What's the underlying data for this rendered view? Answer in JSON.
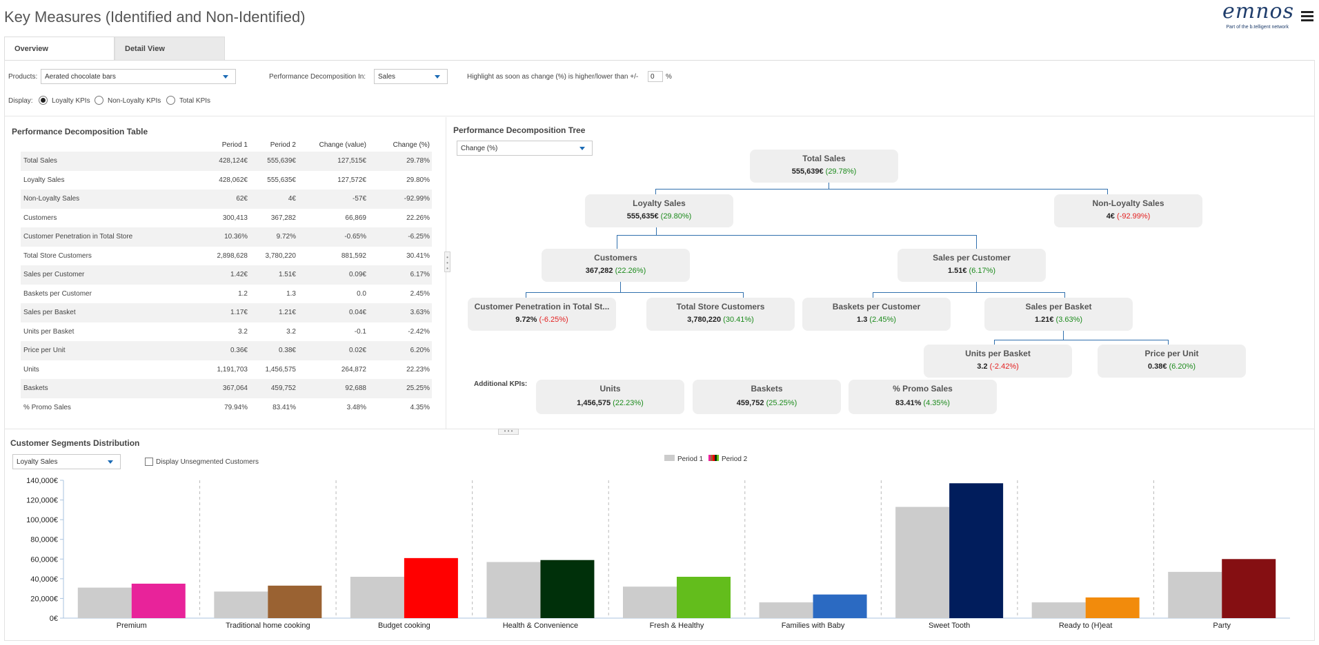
{
  "header": {
    "title": "Key Measures (Identified and Non-Identified)",
    "logo_text": "emnos",
    "logo_subtext": "Part of the b.telligent network"
  },
  "tabs": [
    {
      "label": "Overview",
      "active": true
    },
    {
      "label": "Detail View",
      "active": false
    }
  ],
  "controls": {
    "products_label": "Products:",
    "products_value": "Aerated chocolate bars",
    "decomp_label": "Performance Decomposition In:",
    "decomp_value": "Sales",
    "highlight_label": "Highlight as soon as change (%) is higher/lower than +/-",
    "highlight_value": "0",
    "highlight_unit": "%",
    "display_label": "Display:",
    "display_options": [
      {
        "label": "Loyalty KPIs",
        "selected": true
      },
      {
        "label": "Non-Loyalty KPIs",
        "selected": false
      },
      {
        "label": "Total KPIs",
        "selected": false
      }
    ]
  },
  "table": {
    "title": "Performance Decomposition Table",
    "columns": [
      "",
      "Period 1",
      "Period 2",
      "Change (value)",
      "Change (%)"
    ],
    "rows": [
      [
        "Total Sales",
        "428,124€",
        "555,639€",
        "127,515€",
        "29.78%"
      ],
      [
        "Loyalty Sales",
        "428,062€",
        "555,635€",
        "127,572€",
        "29.80%"
      ],
      [
        "Non-Loyalty Sales",
        "62€",
        "4€",
        "-57€",
        "-92.99%"
      ],
      [
        "Customers",
        "300,413",
        "367,282",
        "66,869",
        "22.26%"
      ],
      [
        "Customer Penetration in Total Store",
        "10.36%",
        "9.72%",
        "-0.65%",
        "-6.25%"
      ],
      [
        "Total Store Customers",
        "2,898,628",
        "3,780,220",
        "881,592",
        "30.41%"
      ],
      [
        "Sales per Customer",
        "1.42€",
        "1.51€",
        "0.09€",
        "6.17%"
      ],
      [
        "Baskets per Customer",
        "1.2",
        "1.3",
        "0.0",
        "2.45%"
      ],
      [
        "Sales per Basket",
        "1.17€",
        "1.21€",
        "0.04€",
        "3.63%"
      ],
      [
        "Units per Basket",
        "3.2",
        "3.2",
        "-0.1",
        "-2.42%"
      ],
      [
        "Price per Unit",
        "0.36€",
        "0.38€",
        "0.02€",
        "6.20%"
      ],
      [
        "Units",
        "1,191,703",
        "1,456,575",
        "264,872",
        "22.23%"
      ],
      [
        "Baskets",
        "367,064",
        "459,752",
        "92,688",
        "25.25%"
      ],
      [
        "% Promo Sales",
        "79.94%",
        "83.41%",
        "3.48%",
        "4.35%"
      ]
    ]
  },
  "tree": {
    "title": "Performance Decomposition Tree",
    "dropdown_value": "Change (%)",
    "additional_label": "Additional KPIs:",
    "nodes": [
      {
        "label": "Total Sales",
        "value": "555,639€",
        "change": "(29.78%)",
        "positive": true
      },
      {
        "label": "Loyalty Sales",
        "value": "555,635€",
        "change": "(29.80%)",
        "positive": true
      },
      {
        "label": "Non-Loyalty Sales",
        "value": "4€",
        "change": "(-92.99%)",
        "positive": false
      },
      {
        "label": "Customers",
        "value": "367,282",
        "change": "(22.26%)",
        "positive": true
      },
      {
        "label": "Sales per Customer",
        "value": "1.51€",
        "change": "(6.17%)",
        "positive": true
      },
      {
        "label": "Customer Penetration in Total St...",
        "value": "9.72%",
        "change": "(-6.25%)",
        "positive": false
      },
      {
        "label": "Total Store Customers",
        "value": "3,780,220",
        "change": "(30.41%)",
        "positive": true
      },
      {
        "label": "Baskets per Customer",
        "value": "1.3",
        "change": "(2.45%)",
        "positive": true
      },
      {
        "label": "Sales per Basket",
        "value": "1.21€",
        "change": "(3.63%)",
        "positive": true
      },
      {
        "label": "Units per Basket",
        "value": "3.2",
        "change": "(-2.42%)",
        "positive": false
      },
      {
        "label": "Price per Unit",
        "value": "0.38€",
        "change": "(6.20%)",
        "positive": true
      },
      {
        "label": "Units",
        "value": "1,456,575",
        "change": "(22.23%)",
        "positive": true
      },
      {
        "label": "Baskets",
        "value": "459,752",
        "change": "(25.25%)",
        "positive": true
      },
      {
        "label": "% Promo Sales",
        "value": "83.41%",
        "change": "(4.35%)",
        "positive": true
      }
    ]
  },
  "segments": {
    "title": "Customer Segments Distribution",
    "dropdown_value": "Loyalty Sales",
    "checkbox_label": "Display Unsegmented Customers",
    "checkbox_checked": false
  },
  "chart_data": {
    "type": "bar",
    "categories": [
      "Premium",
      "Traditional home cooking",
      "Budget cooking",
      "Health & Convenience",
      "Fresh & Healthy",
      "Families with Baby",
      "Sweet Tooth",
      "Ready to (H)eat",
      "Party"
    ],
    "series": [
      {
        "name": "Period 1",
        "values": [
          31000,
          27000,
          42000,
          57000,
          32000,
          16000,
          113000,
          16000,
          47000
        ],
        "color": "#cccccc"
      },
      {
        "name": "Period 2",
        "values": [
          35000,
          33000,
          61000,
          59000,
          42000,
          24000,
          137000,
          21000,
          60000
        ],
        "colors": [
          "#e8239a",
          "#9a6232",
          "#ff0000",
          "#00300a",
          "#63bd1c",
          "#2b6ac2",
          "#011d5c",
          "#f28b0c",
          "#850f12"
        ]
      }
    ],
    "yticks": [
      "140,000€",
      "120,000€",
      "100,000€",
      "80,000€",
      "60,000€",
      "40,000€",
      "20,000€",
      "0€"
    ],
    "ylim": [
      0,
      140000
    ],
    "legend_position": "top-center",
    "grid": false
  }
}
